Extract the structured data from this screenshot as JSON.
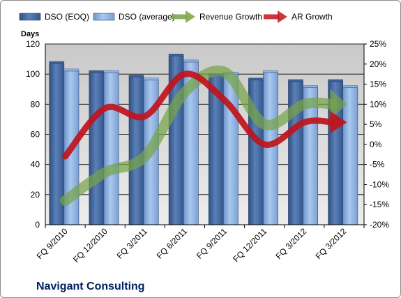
{
  "chart_data": {
    "type": "bar",
    "title": "",
    "caption": "Navigant Consulting",
    "ylabel": "Days",
    "ylim": [
      0,
      120
    ],
    "yticks": [
      0,
      20,
      40,
      60,
      80,
      100,
      120
    ],
    "y2lim": [
      -0.2,
      0.25
    ],
    "y2ticks": [
      "-20%",
      "-15%",
      "-10%",
      "-5%",
      "0%",
      "5%",
      "10%",
      "15%",
      "20%",
      "25%"
    ],
    "grid": true,
    "legend_position": "top",
    "categories": [
      "FQ 9/2010",
      "FQ 12/2010",
      "FQ 3/2011",
      "FQ 6/2011",
      "FQ 9/2011",
      "FQ 12/2011",
      "FQ 3/2012",
      "FQ 3/2012"
    ],
    "series": [
      {
        "name": "DSO (EOQ)",
        "type": "bar",
        "axis": "left",
        "color": "#4a6ea5",
        "values": [
          107,
          101,
          98,
          112,
          99,
          96,
          95,
          95
        ]
      },
      {
        "name": "DSO (average)",
        "type": "bar",
        "axis": "left",
        "color": "#8fb4e3",
        "values": [
          102,
          101,
          96,
          108,
          100,
          101,
          91,
          91
        ]
      },
      {
        "name": "Revenue Growth",
        "type": "line",
        "axis": "right",
        "color": "#77a346",
        "values": [
          -0.14,
          -0.07,
          -0.03,
          0.13,
          0.18,
          0.05,
          0.1,
          0.1
        ]
      },
      {
        "name": "AR Growth",
        "type": "line",
        "axis": "right",
        "color": "#c0141c",
        "values": [
          -0.03,
          0.09,
          0.07,
          0.175,
          0.11,
          0.0,
          0.055,
          0.055
        ]
      }
    ]
  }
}
